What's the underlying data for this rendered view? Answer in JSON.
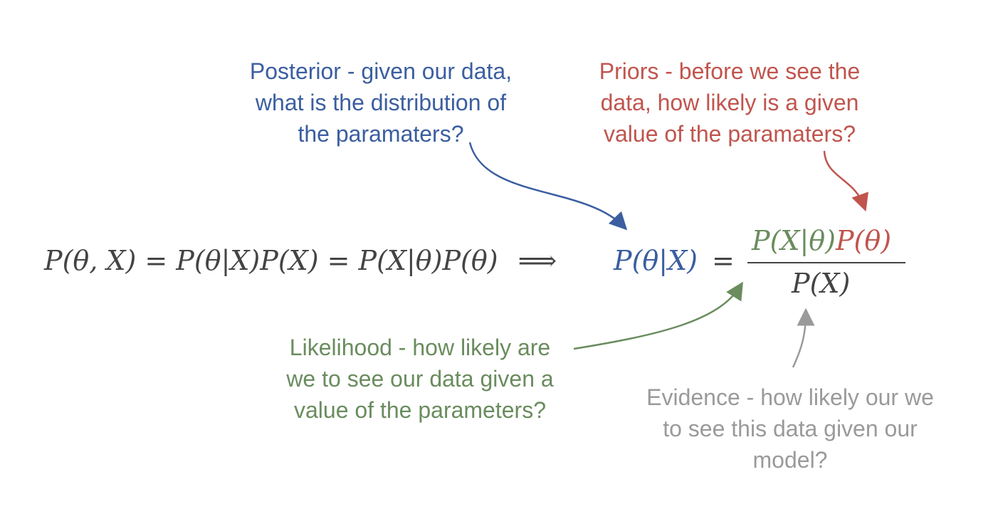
{
  "colors": {
    "posterior": "#3b5ea0",
    "prior": "#c0554e",
    "likelihood": "#6a8c5e",
    "evidence": "#9a9a9a",
    "equation": "#444444"
  },
  "annotations": {
    "posterior": {
      "lines": [
        "Posterior - given our data,",
        "what is the distribution of",
        "the paramaters?"
      ]
    },
    "prior": {
      "lines": [
        "Priors - before we see the",
        "data, how likely is a given",
        "value of the paramaters?"
      ]
    },
    "likelihood": {
      "lines": [
        "Likelihood - how likely are",
        "we to see our data given a",
        "value of the parameters?"
      ]
    },
    "evidence": {
      "lines": [
        "Evidence - how likely our we",
        "to see this data given our",
        "model?"
      ]
    }
  },
  "equation": {
    "joint": "P(θ, X) = P(θ|X)P(X) = P(X|θ)P(θ)",
    "implies": "⟹",
    "posterior_term": "P(θ|X)",
    "equals": "=",
    "likelihood_term": "P(X|θ)",
    "prior_term": "P(θ)",
    "evidence_term": "P(X)"
  }
}
